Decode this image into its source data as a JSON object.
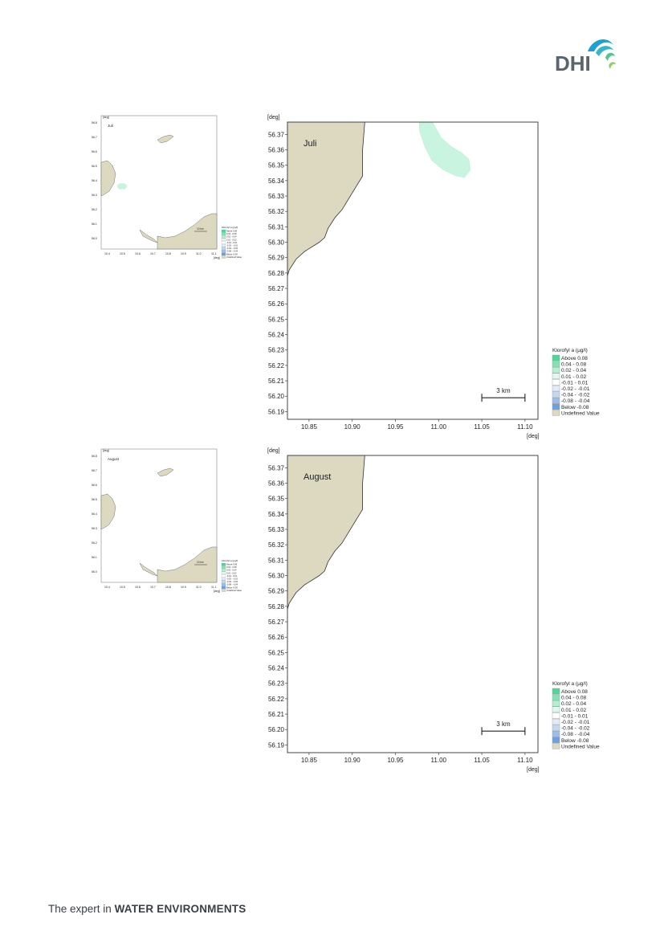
{
  "logo": {
    "text": "DHI"
  },
  "footer": {
    "prefix": "The expert in",
    "emphasis": "WATER ENVIRONMENTS"
  },
  "axes": {
    "unit_label": "[deg]",
    "y_ticks": [
      "56.37",
      "56.36",
      "56.35",
      "56.34",
      "56.33",
      "56.32",
      "56.31",
      "56.30",
      "56.29",
      "56.28",
      "56.27",
      "56.26",
      "56.25",
      "56.24",
      "56.23",
      "56.22",
      "56.21",
      "56.20",
      "56.19"
    ],
    "x_ticks": [
      "10.85",
      "10.90",
      "10.95",
      "11.00",
      "11.05",
      "11.10"
    ]
  },
  "overview_axes": {
    "y_ticks": [
      "56.8",
      "56.7",
      "56.6",
      "56.5",
      "56.4",
      "56.3",
      "56.2",
      "56.1",
      "56.0"
    ],
    "x_ticks": [
      "10.4",
      "10.5",
      "10.6",
      "10.7",
      "10.8",
      "10.9",
      "11.0",
      "11.1"
    ]
  },
  "scale_bar": {
    "label": "3 km"
  },
  "overview_scale_bar": {
    "label": "10 km"
  },
  "legend": {
    "title": "Klorofyl a (µg/l)",
    "items": [
      {
        "label": "Above  0.08",
        "color": "#4fd69a"
      },
      {
        "label": "0.04 -  0.08",
        "color": "#7fe3b4"
      },
      {
        "label": "0.02 -  0.04",
        "color": "#b4efd2"
      },
      {
        "label": "0.01 -  0.02",
        "color": "#e2f8ee"
      },
      {
        "label": "-0.01 -  0.01",
        "color": "#ffffff"
      },
      {
        "label": "-0.02 - -0.01",
        "color": "#e2ecf8"
      },
      {
        "label": "-0.04 - -0.02",
        "color": "#c3d7f1"
      },
      {
        "label": "-0.08 - -0.04",
        "color": "#9dbde9"
      },
      {
        "label": "Below -0.08",
        "color": "#6ea0df"
      },
      {
        "label": "Undefined Value",
        "color": "#dcd9c0"
      }
    ]
  },
  "colors": {
    "land": "#dcd9c0",
    "plume": "#c9f5e0",
    "frame": "#444444"
  },
  "panels": [
    {
      "month": "Juli",
      "has_plume": true
    },
    {
      "month": "August",
      "has_plume": false
    }
  ]
}
